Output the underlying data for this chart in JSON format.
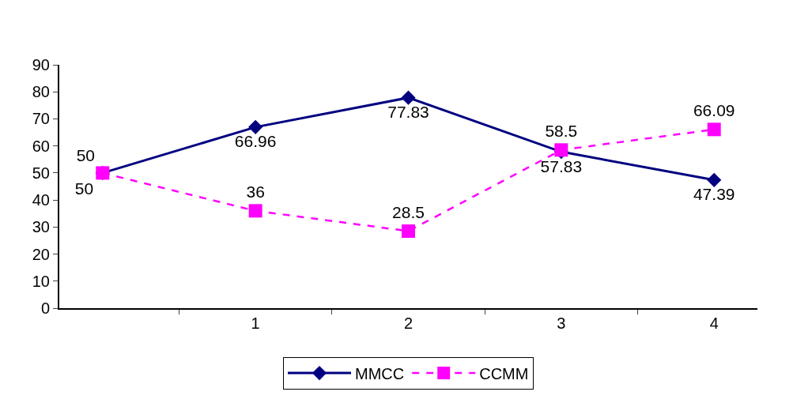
{
  "chart_data": {
    "type": "line",
    "categories": [
      null,
      "1",
      "2",
      "3",
      "4"
    ],
    "series": [
      {
        "name": "MMCC",
        "color": "#000080",
        "values": [
          50,
          66.96,
          77.83,
          57.83,
          47.39
        ],
        "marker": "diamond",
        "line_style": "solid"
      },
      {
        "name": "CCMM",
        "color": "#ff00ff",
        "values": [
          50,
          36,
          28.5,
          58.5,
          66.09
        ],
        "marker": "square",
        "line_style": "dashed"
      }
    ],
    "ylim": [
      0,
      90
    ],
    "yticks": [
      0,
      10,
      20,
      30,
      40,
      50,
      60,
      70,
      80,
      90
    ],
    "legend": "bottom",
    "data_labels": true
  }
}
